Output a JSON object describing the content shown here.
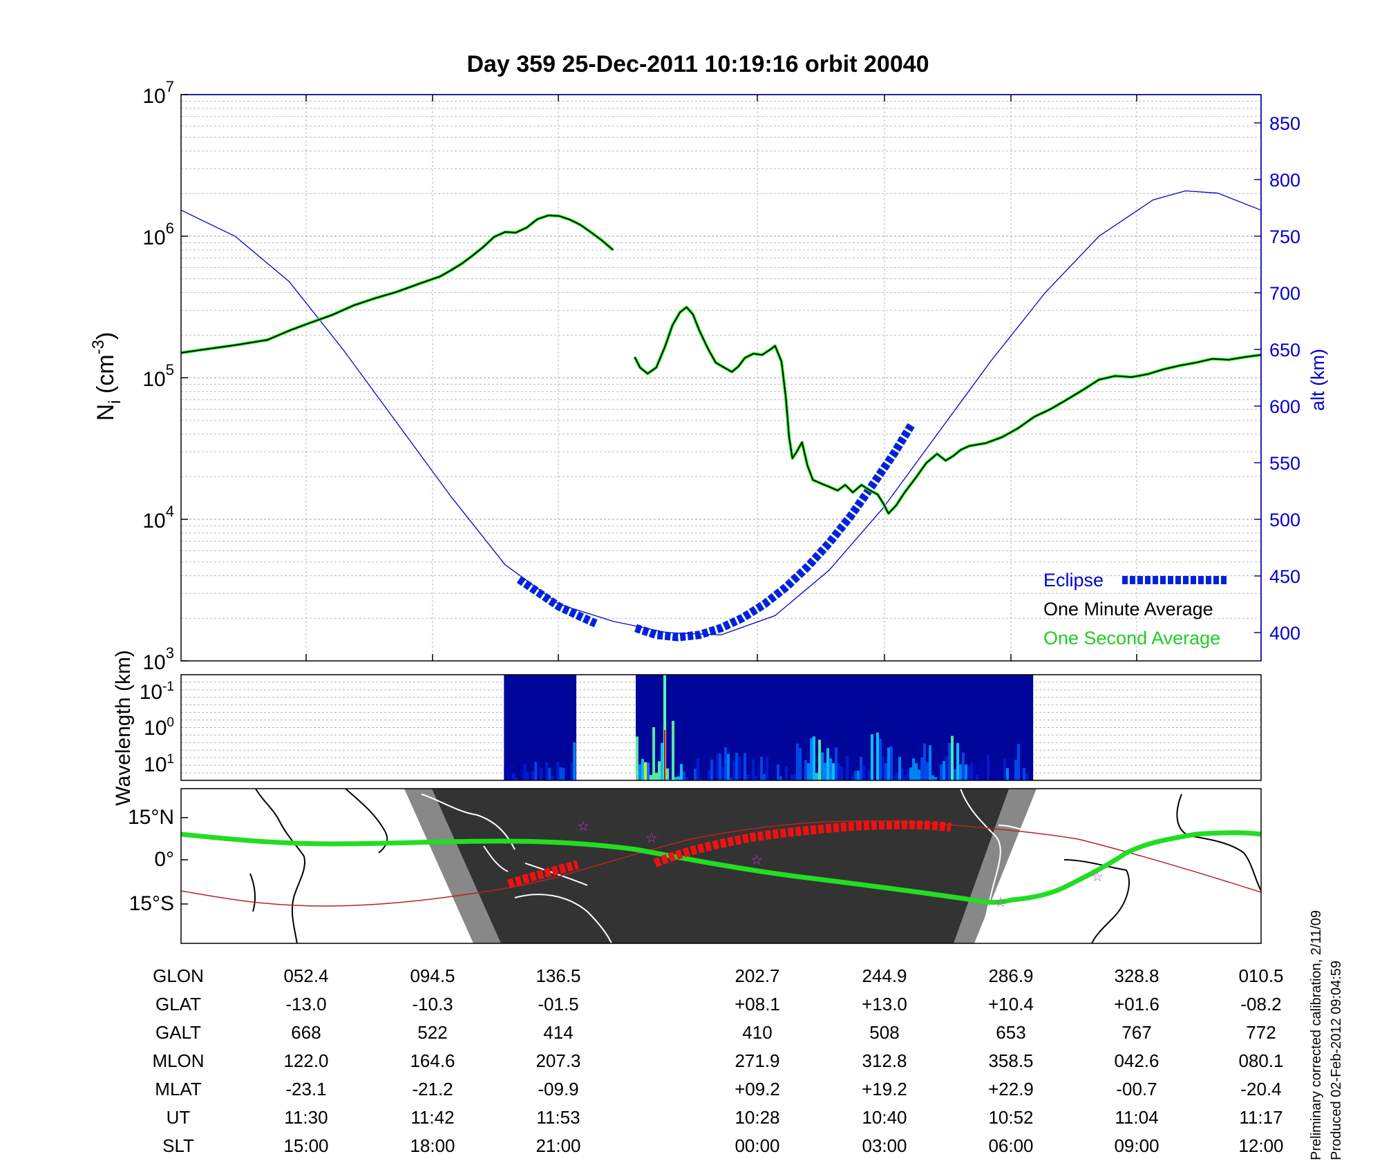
{
  "chart_data": [
    {
      "type": "line",
      "title": "Day 359  25-Dec-2011 10:19:16   orbit 20040",
      "ylabel": "N",
      "ylabel_sub": "i",
      "ylabel_unit_pre": " (cm",
      "ylabel_sup": "-3",
      "ylabel_unit_post": ")",
      "yscale": "log",
      "ylim": [
        1000,
        10000000
      ],
      "yticks": [
        {
          "value": 1000,
          "base": "10",
          "exp": "3"
        },
        {
          "value": 10000,
          "base": "10",
          "exp": "4"
        },
        {
          "value": 100000,
          "base": "10",
          "exp": "5"
        },
        {
          "value": 1000000,
          "base": "10",
          "exp": "6"
        },
        {
          "value": 10000000,
          "base": "10",
          "exp": "7"
        }
      ],
      "y2label": "alt (km)",
      "y2lim": [
        375,
        875
      ],
      "y2ticks": [
        400,
        450,
        500,
        550,
        600,
        650,
        700,
        750,
        800,
        850
      ],
      "grid": true,
      "legend_position": "bottom-right",
      "legend": [
        "Eclipse",
        "One Minute Average",
        "One Second Average"
      ],
      "colors": {
        "altitude": "#0000cc",
        "eclipse": "#0022dd",
        "minute": "#000000",
        "second": "#22ee22"
      },
      "x_fraction_note_free": true,
      "series": [
        {
          "name": "One Minute Average",
          "segments": [
            [
              [
                0.0,
                150000
              ],
              [
                0.02,
                158000
              ],
              [
                0.05,
                170000
              ],
              [
                0.08,
                185000
              ],
              [
                0.1,
                215000
              ],
              [
                0.12,
                245000
              ],
              [
                0.14,
                278000
              ],
              [
                0.16,
                325000
              ],
              [
                0.18,
                365000
              ],
              [
                0.2,
                405000
              ],
              [
                0.22,
                460000
              ],
              [
                0.24,
                520000
              ],
              [
                0.25,
                575000
              ],
              [
                0.26,
                640000
              ],
              [
                0.27,
                730000
              ],
              [
                0.28,
                840000
              ],
              [
                0.29,
                990000
              ],
              [
                0.3,
                1070000
              ],
              [
                0.31,
                1060000
              ],
              [
                0.32,
                1150000
              ],
              [
                0.33,
                1320000
              ],
              [
                0.34,
                1400000
              ],
              [
                0.35,
                1390000
              ],
              [
                0.36,
                1310000
              ],
              [
                0.37,
                1200000
              ],
              [
                0.38,
                1060000
              ],
              [
                0.39,
                930000
              ],
              [
                0.4,
                800000
              ]
            ],
            [
              [
                0.4,
                800000
              ]
            ],
            [
              [
                0.42,
                140000
              ],
              [
                0.425,
                118000
              ],
              [
                0.432,
                107000
              ],
              [
                0.44,
                118000
              ],
              [
                0.448,
                165000
              ],
              [
                0.455,
                235000
              ],
              [
                0.462,
                290000
              ],
              [
                0.468,
                315000
              ],
              [
                0.474,
                280000
              ],
              [
                0.48,
                215000
              ],
              [
                0.488,
                160000
              ],
              [
                0.495,
                128000
              ],
              [
                0.503,
                118000
              ],
              [
                0.51,
                110000
              ],
              [
                0.516,
                120000
              ],
              [
                0.522,
                138000
              ],
              [
                0.53,
                148000
              ],
              [
                0.538,
                145000
              ],
              [
                0.545,
                157000
              ],
              [
                0.55,
                168000
              ],
              [
                0.556,
                130000
              ],
              [
                0.56,
                72000
              ],
              [
                0.563,
                38000
              ],
              [
                0.566,
                27000
              ],
              [
                0.57,
                30000
              ],
              [
                0.575,
                35000
              ],
              [
                0.58,
                24000
              ],
              [
                0.585,
                19000
              ],
              [
                0.592,
                18000
              ],
              [
                0.6,
                17000
              ],
              [
                0.608,
                16000
              ],
              [
                0.615,
                17500
              ],
              [
                0.622,
                15500
              ],
              [
                0.63,
                17500
              ],
              [
                0.638,
                16000
              ],
              [
                0.645,
                15000
              ],
              [
                0.65,
                13000
              ],
              [
                0.655,
                11000
              ],
              [
                0.662,
                12500
              ],
              [
                0.67,
                15500
              ],
              [
                0.68,
                19500
              ],
              [
                0.69,
                25000
              ],
              [
                0.7,
                29000
              ],
              [
                0.708,
                26000
              ],
              [
                0.715,
                28000
              ],
              [
                0.722,
                31000
              ],
              [
                0.73,
                33000
              ],
              [
                0.745,
                34500
              ],
              [
                0.76,
                38000
              ],
              [
                0.775,
                44000
              ],
              [
                0.79,
                53000
              ],
              [
                0.805,
                60000
              ],
              [
                0.82,
                70000
              ],
              [
                0.835,
                82000
              ],
              [
                0.85,
                97000
              ],
              [
                0.865,
                103000
              ],
              [
                0.88,
                101000
              ],
              [
                0.895,
                106000
              ],
              [
                0.91,
                115000
              ],
              [
                0.925,
                122000
              ],
              [
                0.94,
                128000
              ],
              [
                0.955,
                136000
              ],
              [
                0.97,
                134000
              ],
              [
                0.985,
                140000
              ],
              [
                1.0,
                145000
              ]
            ]
          ]
        },
        {
          "name": "Eclipse",
          "segments": [
            [
              [
                0.313,
                447
              ],
              [
                0.33,
                436
              ],
              [
                0.35,
                423
              ],
              [
                0.37,
                414
              ],
              [
                0.384,
                408
              ]
            ],
            [
              [
                0.421,
                404
              ],
              [
                0.44,
                398
              ],
              [
                0.46,
                396
              ],
              [
                0.48,
                398
              ],
              [
                0.5,
                404
              ],
              [
                0.52,
                413
              ],
              [
                0.54,
                425
              ],
              [
                0.56,
                440
              ],
              [
                0.58,
                458
              ],
              [
                0.6,
                479
              ],
              [
                0.62,
                503
              ],
              [
                0.64,
                530
              ],
              [
                0.66,
                558
              ],
              [
                0.676,
                583
              ]
            ]
          ]
        }
      ],
      "altitude_curve": [
        [
          0.0,
          773
        ],
        [
          0.05,
          750
        ],
        [
          0.1,
          710
        ],
        [
          0.15,
          650
        ],
        [
          0.2,
          585
        ],
        [
          0.25,
          520
        ],
        [
          0.3,
          460
        ],
        [
          0.35,
          425
        ],
        [
          0.4,
          410
        ],
        [
          0.45,
          400
        ],
        [
          0.5,
          398
        ],
        [
          0.55,
          415
        ],
        [
          0.6,
          455
        ],
        [
          0.65,
          510
        ],
        [
          0.7,
          575
        ],
        [
          0.75,
          640
        ],
        [
          0.8,
          700
        ],
        [
          0.85,
          750
        ],
        [
          0.9,
          782
        ],
        [
          0.93,
          790
        ],
        [
          0.96,
          788
        ],
        [
          1.0,
          773
        ]
      ]
    },
    {
      "type": "heatmap",
      "ylabel": "Wavelength (km)",
      "yscale": "log",
      "yticks": [
        {
          "base": "10",
          "exp": "-1"
        },
        {
          "base": "10",
          "exp": "0"
        },
        {
          "base": "10",
          "exp": "1"
        }
      ],
      "data_blocks": [
        [
          0.299,
          0.366
        ],
        [
          0.421,
          0.789
        ]
      ]
    },
    {
      "type": "map",
      "yticks": [
        "15°N",
        "0°",
        "15°S"
      ],
      "colors": {
        "track": "#22dd22",
        "eclipse": "#ee1111",
        "equator": "#bb2222",
        "night": "#333333",
        "twilight": "#808080"
      }
    }
  ],
  "table": {
    "labels": [
      "GLON",
      "GLAT",
      "GALT",
      "MLON",
      "MLAT",
      "UT",
      "SLT"
    ],
    "columns": [
      [
        "052.4",
        "-13.0",
        "668",
        "122.0",
        "-23.1",
        "11:30",
        "15:00"
      ],
      [
        "094.5",
        "-10.3",
        "522",
        "164.6",
        "-21.2",
        "11:42",
        "18:00"
      ],
      [
        "136.5",
        "-01.5",
        "414",
        "207.3",
        "-09.9",
        "11:53",
        "21:00"
      ],
      [
        "202.7",
        "+08.1",
        "410",
        "271.9",
        "+09.2",
        "10:28",
        "00:00"
      ],
      [
        "244.9",
        "+13.0",
        "508",
        "312.8",
        "+19.2",
        "10:40",
        "03:00"
      ],
      [
        "286.9",
        "+10.4",
        "653",
        "358.5",
        "+22.9",
        "10:52",
        "06:00"
      ],
      [
        "328.8",
        "+01.6",
        "767",
        "042.6",
        "-00.7",
        "11:04",
        "09:00"
      ],
      [
        "010.5",
        "-08.2",
        "772",
        "080.1",
        "-20.4",
        "11:17",
        "12:00"
      ]
    ]
  },
  "footnote": {
    "line1": "Preliminary corrected calibration, 2/11/09",
    "line2": "Produced 02-Feb-2012 09:04:59"
  }
}
